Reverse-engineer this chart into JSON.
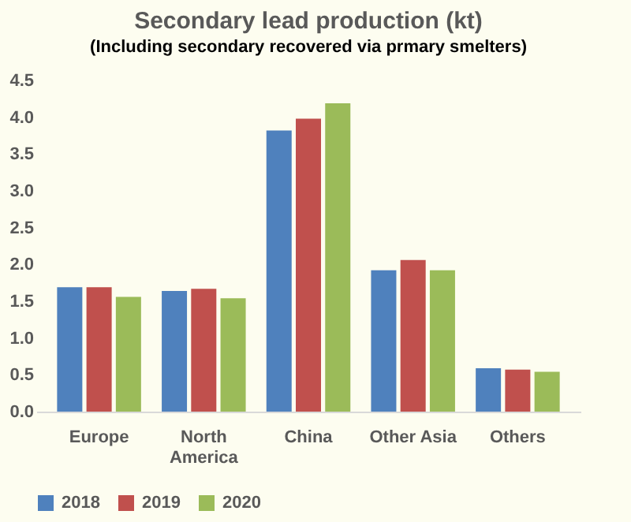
{
  "chart_data": {
    "type": "bar",
    "title": "Secondary lead production (kt)",
    "subtitle": "(Including secondary recovered via prmary smelters)",
    "categories": [
      "Europe",
      "North America",
      "China",
      "Other Asia",
      "Others"
    ],
    "series": [
      {
        "name": "2018",
        "color": "#4f81bd",
        "values": [
          1.69,
          1.64,
          3.82,
          1.92,
          0.59
        ]
      },
      {
        "name": "2019",
        "color": "#c0504d",
        "values": [
          1.69,
          1.67,
          3.98,
          2.06,
          0.57
        ]
      },
      {
        "name": "2020",
        "color": "#9bbb59",
        "values": [
          1.56,
          1.54,
          4.19,
          1.92,
          0.54
        ]
      }
    ],
    "ylim": [
      0,
      4.5
    ],
    "yticks": [
      {
        "value": 0,
        "label": "0.0"
      },
      0.5,
      {
        "value": 1,
        "label": "1.0"
      },
      1.5,
      {
        "value": 2,
        "label": "2.0"
      },
      2.5,
      {
        "value": 3,
        "label": "3.0"
      },
      3.5,
      {
        "value": 4,
        "label": "4.0"
      },
      4.5
    ],
    "grid": false,
    "legend": "bottom"
  }
}
